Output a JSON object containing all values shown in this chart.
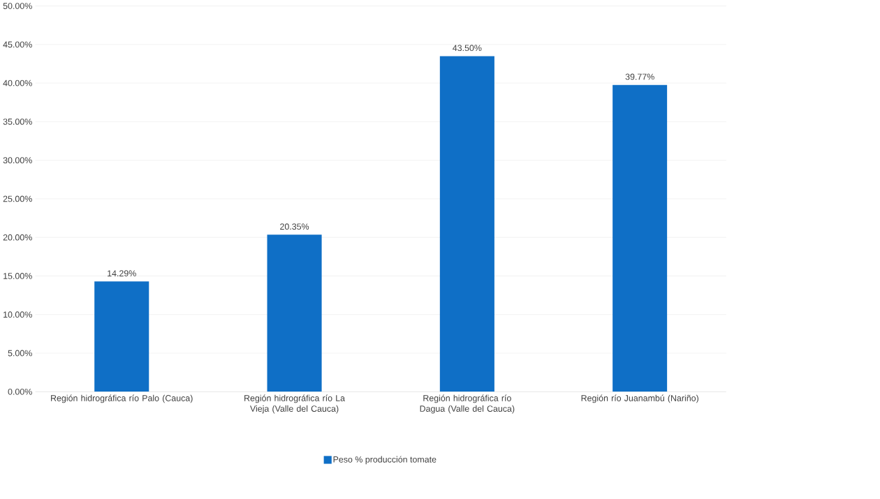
{
  "chart_data": {
    "type": "bar",
    "categories": [
      "Región hidrográfica río Palo (Cauca)",
      "Región hidrográfica río La Vieja (Valle del Cauca)",
      "Región hidrográfica río Dagua (Valle del Cauca)",
      "Región río Juanambú (Nariño)"
    ],
    "series": [
      {
        "name": "Peso % producción tomate",
        "color": "#0f6fc6",
        "values": [
          14.29,
          20.35,
          43.5,
          39.77
        ],
        "value_labels": [
          "14.29%",
          "20.35%",
          "43.50%",
          "39.77%"
        ]
      }
    ],
    "ylim": [
      0,
      50
    ],
    "yticks": [
      {
        "value": 0,
        "label": "0.00%"
      },
      {
        "value": 5,
        "label": "5.00%"
      },
      {
        "value": 10,
        "label": "10.00%"
      },
      {
        "value": 15,
        "label": "15.00%"
      },
      {
        "value": 20,
        "label": "20.00%"
      },
      {
        "value": 25,
        "label": "25.00%"
      },
      {
        "value": 30,
        "label": "30.00%"
      },
      {
        "value": 35,
        "label": "35.00%"
      },
      {
        "value": 40,
        "label": "40.00%"
      },
      {
        "value": 45,
        "label": "45.00%"
      },
      {
        "value": 50,
        "label": "50.00%"
      }
    ],
    "grid": "y",
    "legend": "bottom"
  }
}
